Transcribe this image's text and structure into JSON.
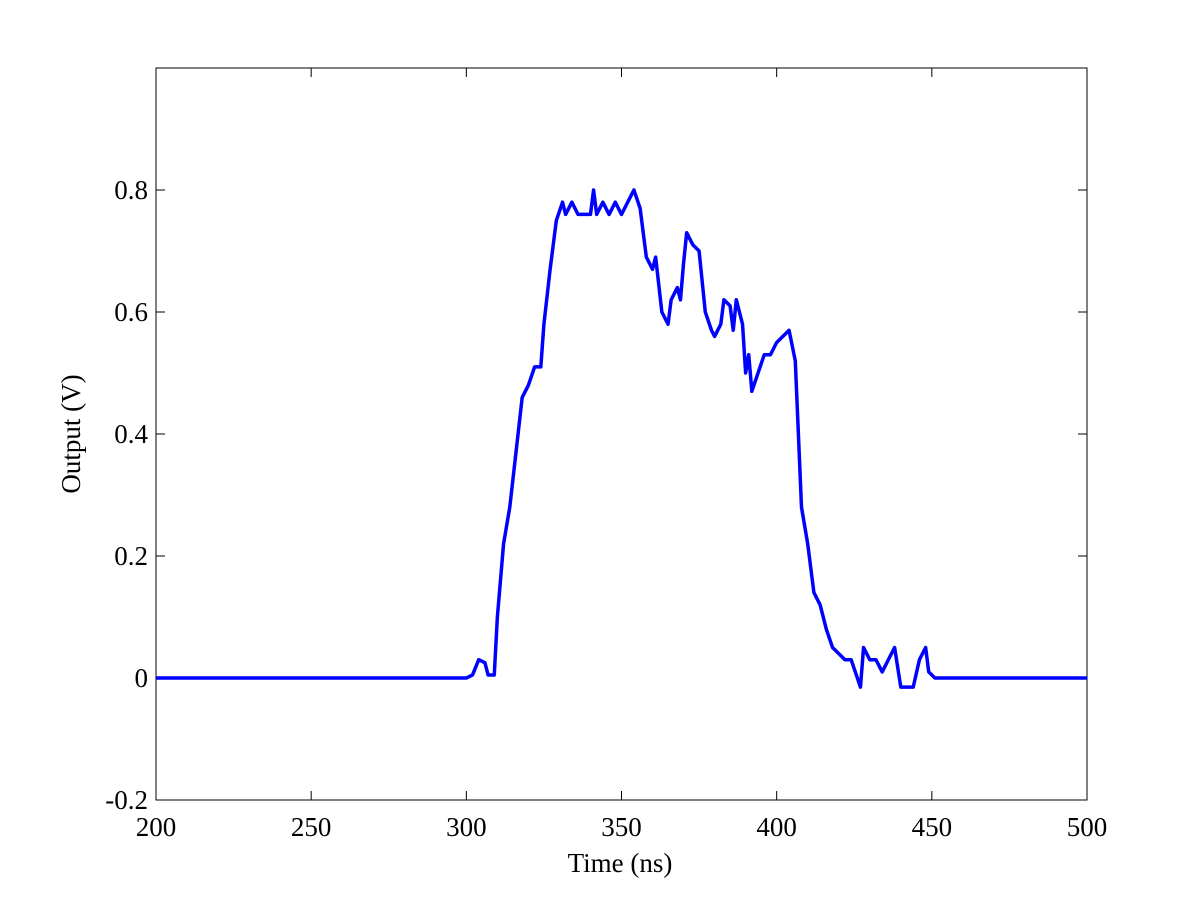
{
  "chart_data": {
    "type": "line",
    "xlabel": "Time (ns)",
    "ylabel": "Output (V)",
    "x": [
      200,
      300,
      302,
      304,
      306,
      307,
      309,
      310,
      312,
      314,
      316,
      318,
      320,
      322,
      324,
      325,
      327,
      329,
      331,
      332,
      334,
      336,
      340,
      341,
      342,
      344,
      346,
      348,
      350,
      352,
      354,
      356,
      358,
      360,
      361,
      363,
      365,
      366,
      368,
      369,
      370,
      371,
      373,
      375,
      377,
      379,
      380,
      382,
      383,
      385,
      386,
      387,
      389,
      390,
      391,
      392,
      394,
      396,
      398,
      400,
      402,
      404,
      406,
      408,
      410,
      412,
      414,
      416,
      418,
      420,
      422,
      424,
      426,
      427,
      428,
      430,
      432,
      434,
      436,
      438,
      440,
      444,
      446,
      448,
      449,
      451,
      500
    ],
    "values": [
      0,
      0,
      0.005,
      0.03,
      0.025,
      0.005,
      0.005,
      0.1,
      0.22,
      0.28,
      0.37,
      0.46,
      0.48,
      0.51,
      0.51,
      0.58,
      0.67,
      0.75,
      0.78,
      0.76,
      0.78,
      0.76,
      0.76,
      0.8,
      0.76,
      0.78,
      0.76,
      0.78,
      0.76,
      0.78,
      0.8,
      0.77,
      0.69,
      0.67,
      0.69,
      0.6,
      0.58,
      0.62,
      0.64,
      0.62,
      0.68,
      0.73,
      0.71,
      0.7,
      0.6,
      0.57,
      0.56,
      0.58,
      0.62,
      0.61,
      0.57,
      0.62,
      0.58,
      0.5,
      0.53,
      0.47,
      0.5,
      0.53,
      0.53,
      0.55,
      0.56,
      0.57,
      0.52,
      0.28,
      0.22,
      0.14,
      0.12,
      0.08,
      0.05,
      0.04,
      0.03,
      0.03,
      0,
      -0.015,
      0.05,
      0.03,
      0.03,
      0.01,
      0.03,
      0.05,
      -0.015,
      -0.015,
      0.03,
      0.05,
      0.01,
      0,
      0
    ],
    "color": "#0000ff",
    "xlim": [
      200,
      500
    ],
    "xticks": [
      200,
      250,
      300,
      350,
      400,
      450,
      500
    ],
    "ylim": [
      -0.2,
      1.0
    ],
    "yticks": [
      -0.2,
      0,
      0.2,
      0.4,
      0.6,
      0.8
    ],
    "grid": false
  }
}
